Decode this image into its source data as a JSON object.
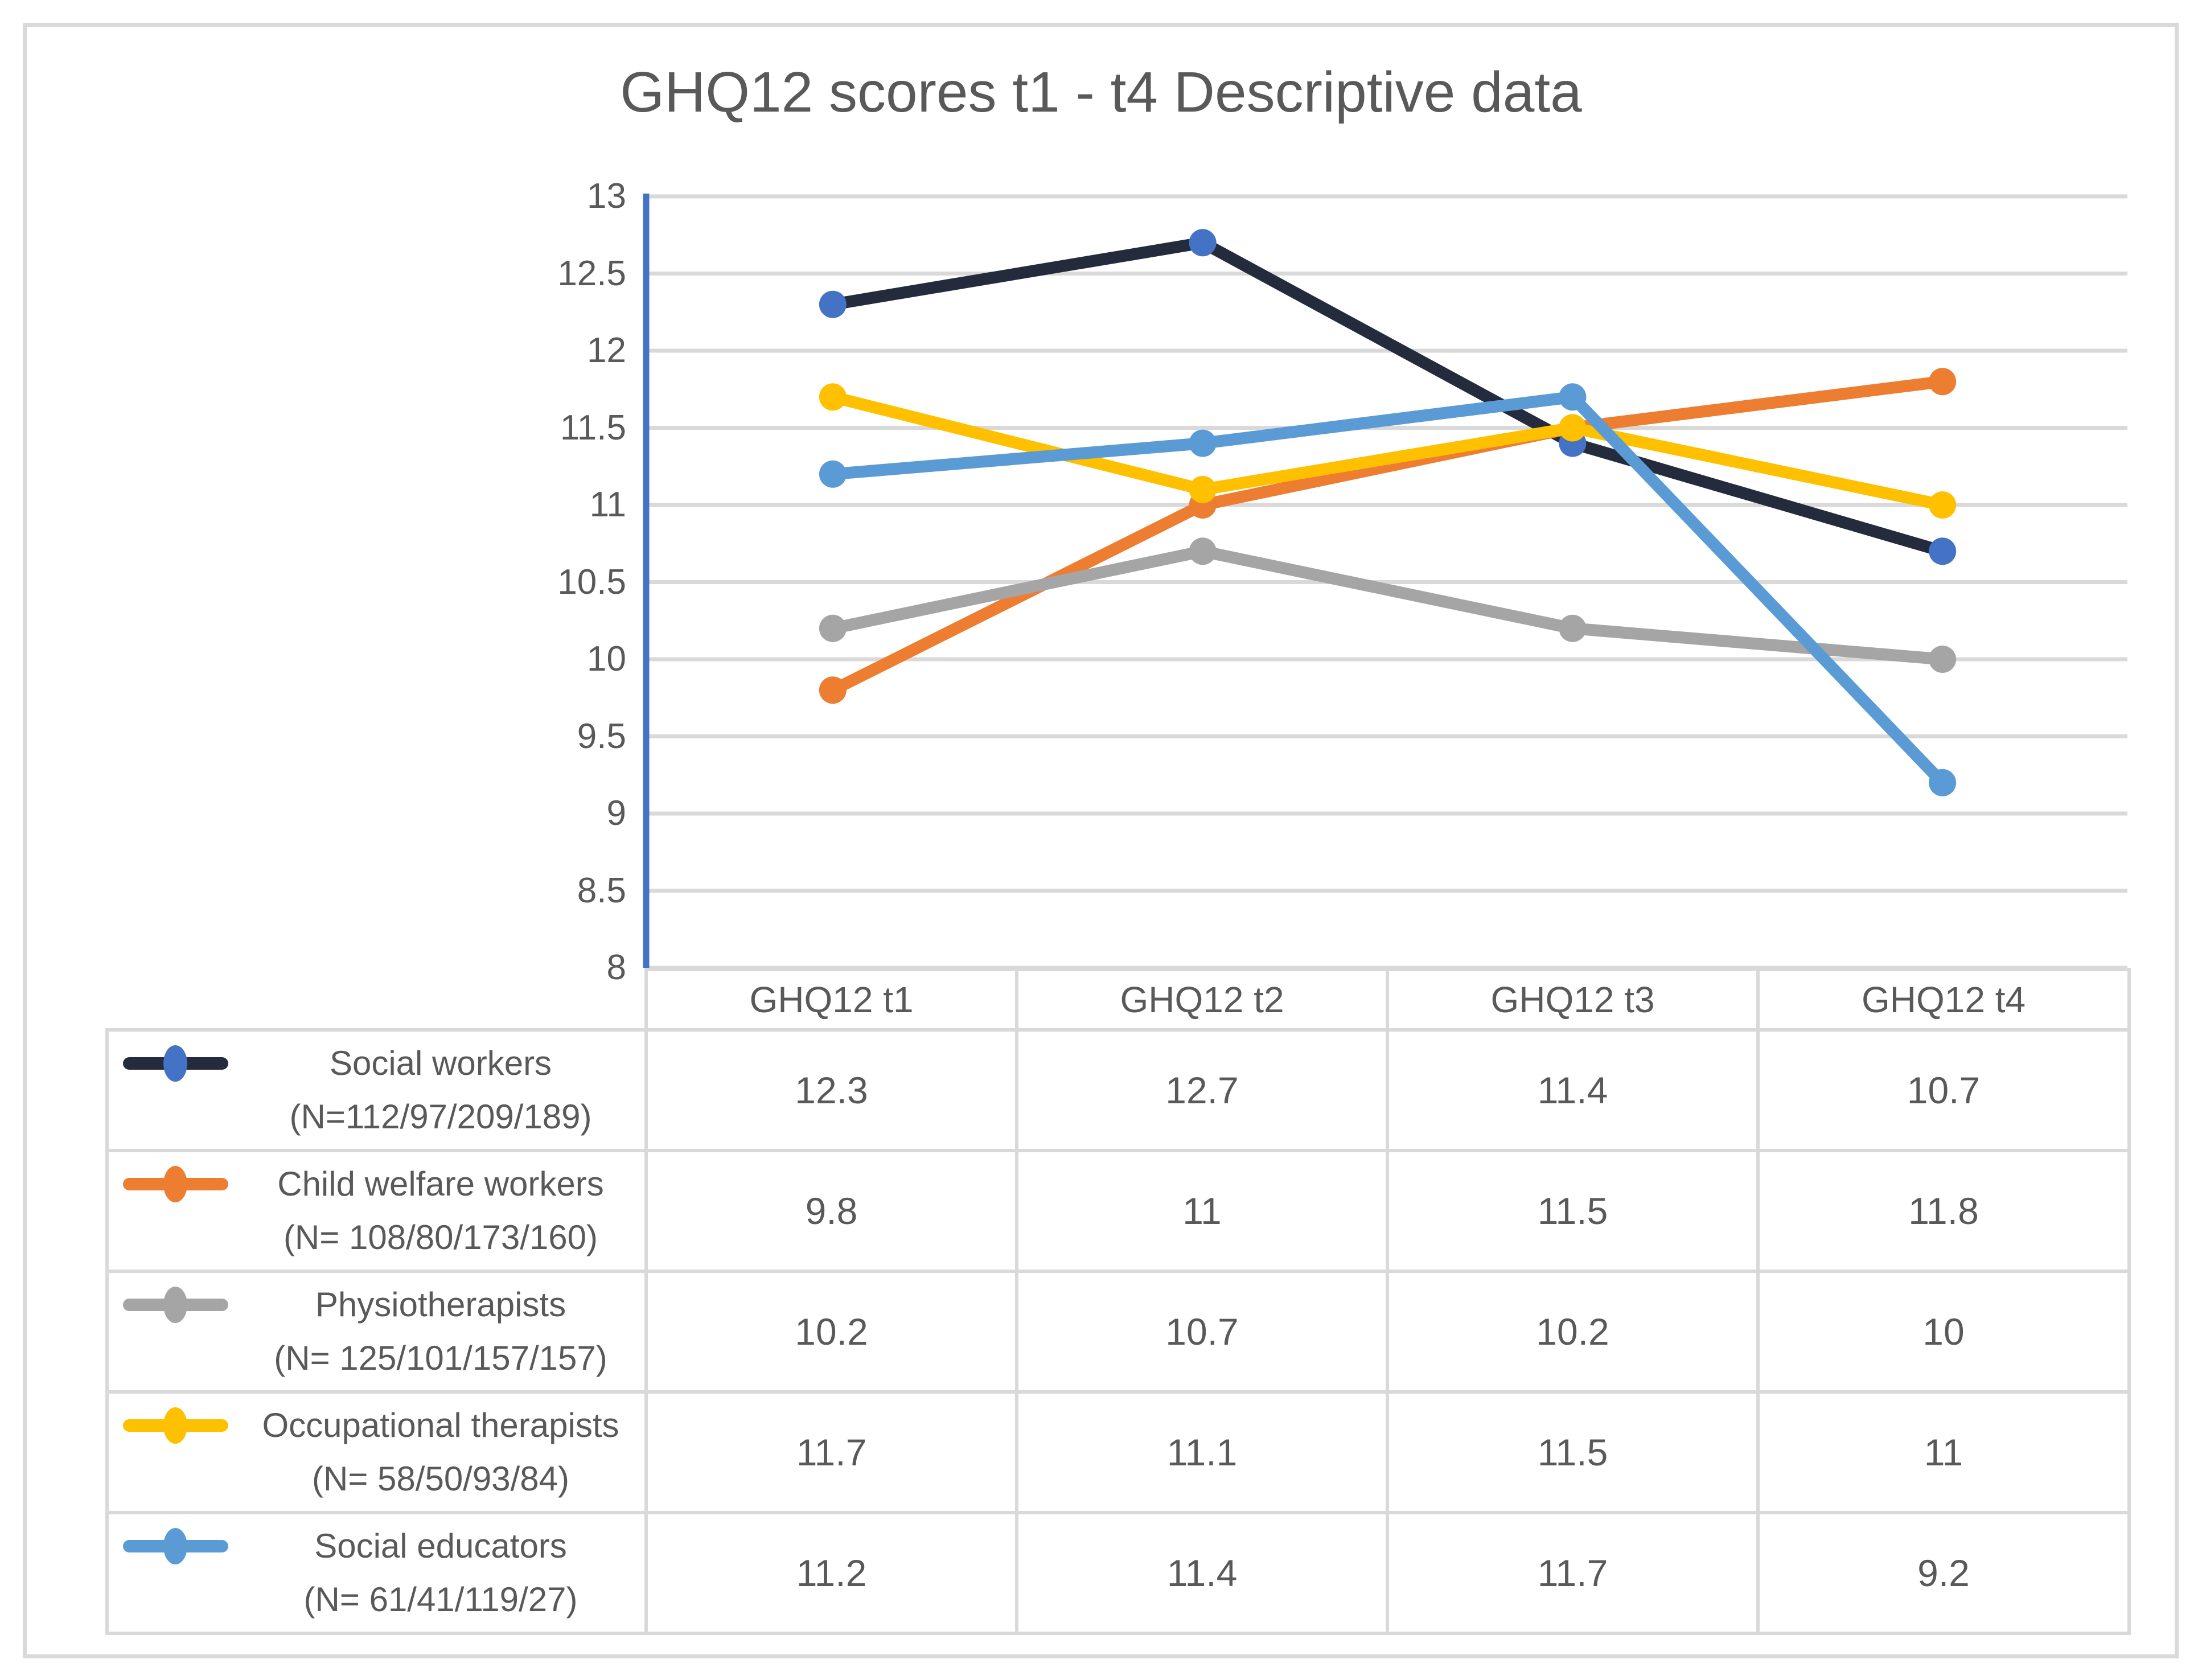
{
  "chart_data": {
    "type": "line",
    "title": "GHQ12 scores t1 - t4 Descriptive data",
    "categories": [
      "GHQ12 t1",
      "GHQ12 t2",
      "GHQ12 t3",
      "GHQ12 t4"
    ],
    "y_axis": {
      "min": 8,
      "max": 13,
      "step": 0.5,
      "tick_labels": [
        "13",
        "12.5",
        "12",
        "11.5",
        "11",
        "10.5",
        "10",
        "9.5",
        "9",
        "8.5",
        "8"
      ]
    },
    "grid": true,
    "legend_position": "table-left",
    "series": [
      {
        "name": "Social workers",
        "n_label": "(N=112/97/209/189)",
        "line_color": "#232B3C",
        "marker_color": "#4472C4",
        "values": [
          12.3,
          12.7,
          11.4,
          10.7
        ]
      },
      {
        "name": "Child welfare workers",
        "n_label": "(N= 108/80/173/160)",
        "line_color": "#ED7D31",
        "marker_color": "#ED7D31",
        "values": [
          9.8,
          11,
          11.5,
          11.8
        ]
      },
      {
        "name": "Physiotherapists",
        "n_label": "(N= 125/101/157/157)",
        "line_color": "#A5A5A5",
        "marker_color": "#A5A5A5",
        "values": [
          10.2,
          10.7,
          10.2,
          10
        ]
      },
      {
        "name": "Occupational therapists",
        "n_label": "(N= 58/50/93/84)",
        "line_color": "#FFC000",
        "marker_color": "#FFC000",
        "values": [
          11.7,
          11.1,
          11.5,
          11
        ]
      },
      {
        "name": "Social educators",
        "n_label": "(N= 61/41/119/27)",
        "line_color": "#5B9BD5",
        "marker_color": "#5B9BD5",
        "values": [
          11.2,
          11.4,
          11.7,
          9.2
        ]
      }
    ],
    "colors": {
      "axis": "#4472C4",
      "gridline": "#D9D9D9",
      "text": "#595959",
      "table_border": "#D9D9D9"
    }
  }
}
